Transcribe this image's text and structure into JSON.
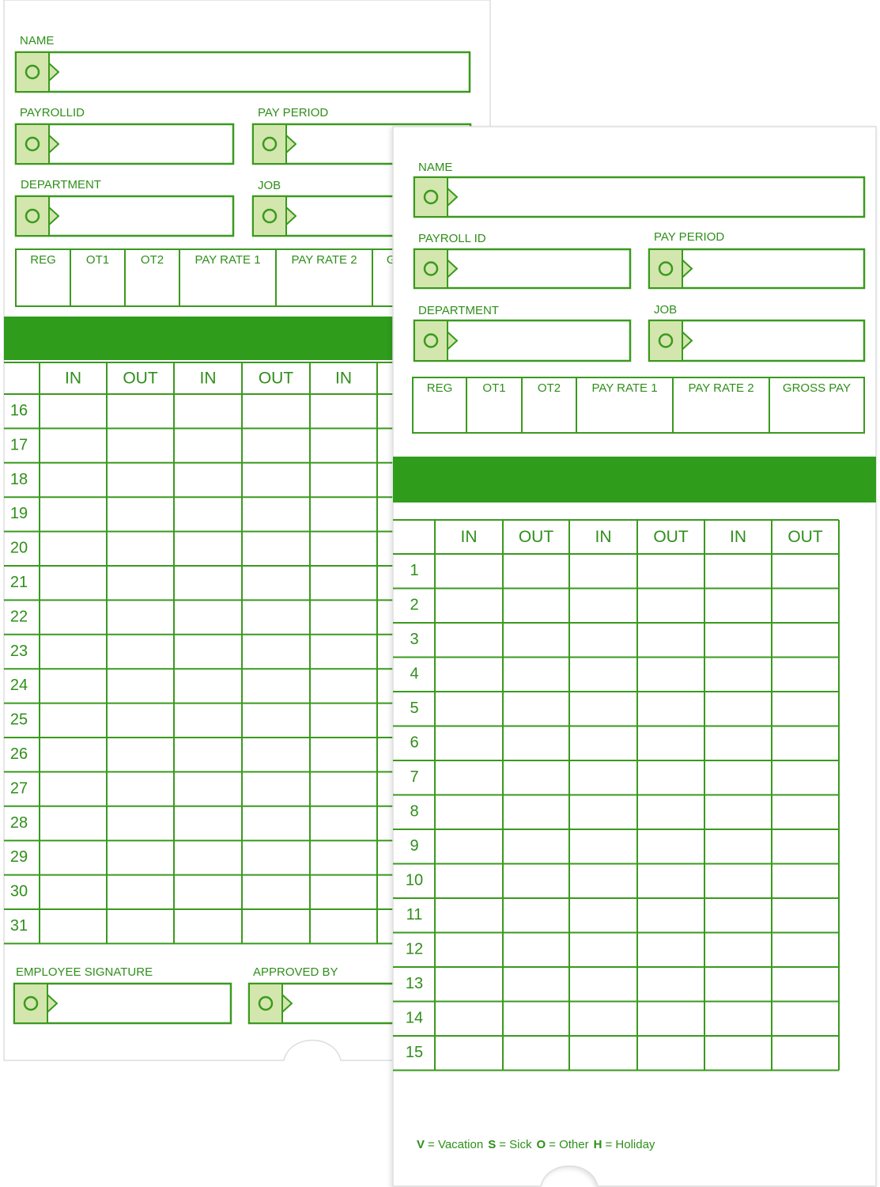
{
  "back_card": {
    "name_label": "NAME",
    "payroll_id_label": "PAYROLLID",
    "pay_period_label": "PAY PERIOD",
    "department_label": "DEPARTMENT",
    "job_label": "JOB",
    "pay_columns": [
      "REG",
      "OT1",
      "OT2",
      "PAY RATE 1",
      "PAY RATE 2",
      "GROSS PAY"
    ],
    "time_columns": [
      "IN",
      "OUT",
      "IN",
      "OUT",
      "IN"
    ],
    "days": [
      "16",
      "17",
      "18",
      "19",
      "20",
      "21",
      "22",
      "23",
      "24",
      "25",
      "26",
      "27",
      "28",
      "29",
      "30",
      "31"
    ],
    "employee_signature_label": "EMPLOYEE SIGNATURE",
    "approved_by_label": "APPROVED BY"
  },
  "front_card": {
    "name_label": "NAME",
    "payroll_id_label": "PAYROLL ID",
    "pay_period_label": "PAY PERIOD",
    "department_label": "DEPARTMENT",
    "job_label": "JOB",
    "pay_columns": [
      "REG",
      "OT1",
      "OT2",
      "PAY RATE 1",
      "PAY RATE 2",
      "GROSS PAY"
    ],
    "time_columns": [
      "IN",
      "OUT",
      "IN",
      "OUT",
      "IN",
      "OUT"
    ],
    "days": [
      "1",
      "2",
      "3",
      "4",
      "5",
      "6",
      "7",
      "8",
      "9",
      "10",
      "11",
      "12",
      "13",
      "14",
      "15"
    ],
    "legend": [
      {
        "code": "V",
        "text": "= Vacation"
      },
      {
        "code": "S",
        "text": "= Sick"
      },
      {
        "code": "O",
        "text": "= Other"
      },
      {
        "code": "H",
        "text": "= Holiday"
      }
    ]
  }
}
